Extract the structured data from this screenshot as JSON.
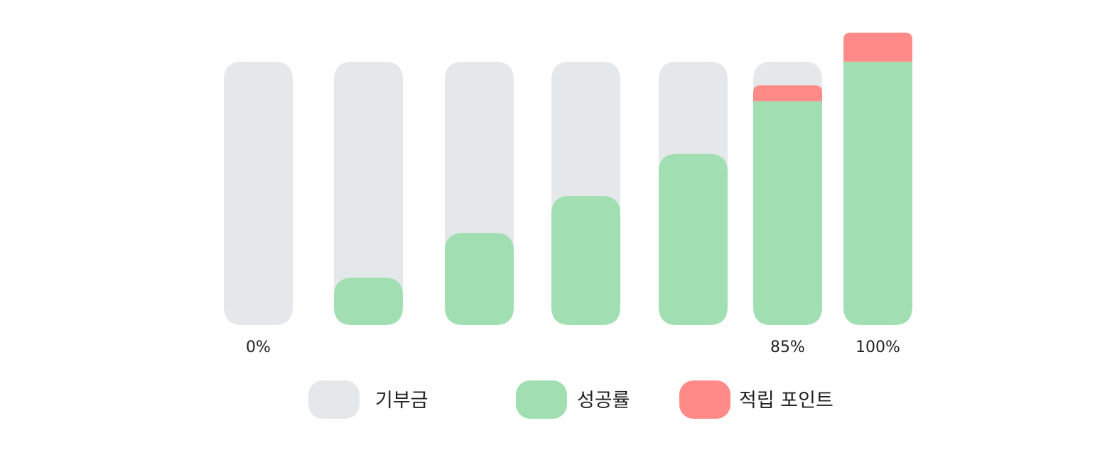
{
  "chart_data": {
    "type": "bar",
    "categories": [
      "",
      "",
      "",
      "",
      "",
      "",
      ""
    ],
    "bar_labels": [
      "0%",
      "",
      "",
      "",
      "",
      "85%",
      "100%"
    ],
    "series": [
      {
        "name": "기부금",
        "values": [
          100,
          100,
          100,
          100,
          100,
          100,
          100
        ]
      },
      {
        "name": "성공률",
        "values": [
          0,
          18,
          35,
          49,
          65,
          85,
          100
        ]
      },
      {
        "name": "적립 포인트",
        "values": [
          0,
          0,
          0,
          0,
          0,
          6,
          11
        ]
      }
    ],
    "ylim": [
      0,
      111
    ],
    "grid": false,
    "legend": "bottom",
    "colors": {
      "기부금": "#e4e8ea",
      "성공률": "#a1dfb2",
      "적립 포인트": "#ff8a88"
    }
  }
}
